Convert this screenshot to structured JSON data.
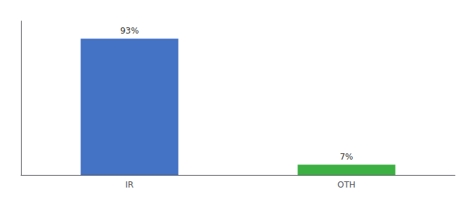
{
  "chart_data": {
    "type": "bar",
    "categories": [
      "IR",
      "OTH"
    ],
    "values": [
      93,
      7
    ],
    "value_labels": [
      "93%",
      "7%"
    ],
    "colors": [
      "#4472c4",
      "#3cb043"
    ],
    "ylim": [
      0,
      105
    ],
    "grid": false,
    "data_labels": true,
    "tick_labels": "x"
  }
}
